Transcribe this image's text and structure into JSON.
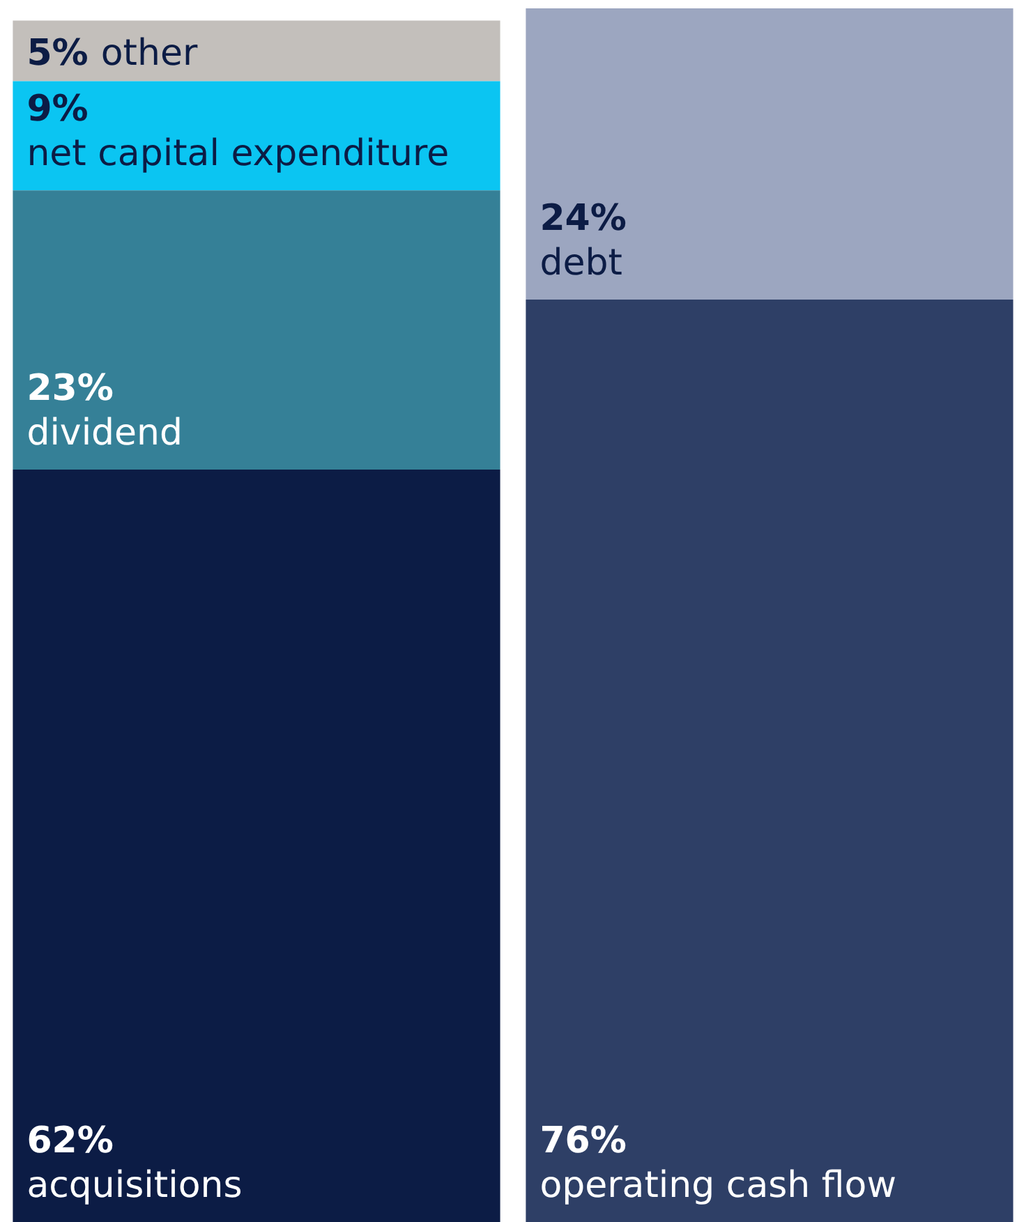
{
  "chart_data": {
    "type": "bar",
    "stacked": true,
    "categories": [
      null,
      null
    ],
    "series": [
      {
        "name": "acquisitions",
        "color": "#0c1c45",
        "values": [
          62,
          null
        ],
        "value_labels": [
          "62%",
          null
        ]
      },
      {
        "name": "dividend",
        "color": "#358097",
        "values": [
          23,
          null
        ],
        "value_labels": [
          "23%",
          null
        ]
      },
      {
        "name": "net capital expenditure",
        "color": "#0bc5f2",
        "values": [
          9,
          null
        ],
        "value_labels": [
          "9%",
          null
        ]
      },
      {
        "name": "other",
        "color": "#c3bfbb",
        "values": [
          5,
          null
        ],
        "value_labels": [
          "5%",
          null
        ]
      },
      {
        "name": "operating cash flow",
        "color": "#2e3f66",
        "values": [
          null,
          76
        ],
        "value_labels": [
          null,
          "76%"
        ]
      },
      {
        "name": "debt",
        "color": "#9ca6c0",
        "values": [
          null,
          24
        ],
        "value_labels": [
          null,
          "24%"
        ]
      }
    ]
  }
}
